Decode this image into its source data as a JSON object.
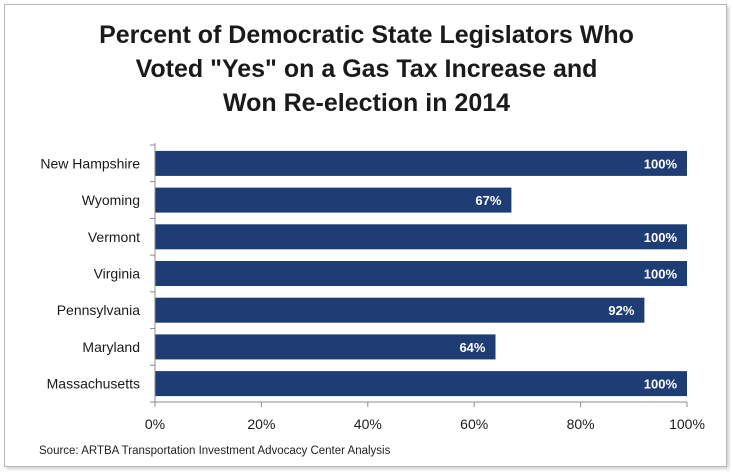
{
  "chart_data": {
    "type": "bar",
    "orientation": "horizontal",
    "title_lines": [
      "Percent of Democratic State Legislators Who",
      "Voted \"Yes\" on a Gas Tax Increase and",
      "Won Re-election in 2014"
    ],
    "categories": [
      "New Hampshire",
      "Wyoming",
      "Vermont",
      "Virginia",
      "Pennsylvania",
      "Maryland",
      "Massachusetts"
    ],
    "values": [
      100,
      67,
      100,
      100,
      92,
      64,
      100
    ],
    "value_labels": [
      "100%",
      "67%",
      "100%",
      "100%",
      "92%",
      "64%",
      "100%"
    ],
    "xlim": [
      0,
      100
    ],
    "x_ticks": [
      0,
      20,
      40,
      60,
      80,
      100
    ],
    "x_tick_labels": [
      "0%",
      "20%",
      "40%",
      "60%",
      "80%",
      "100%"
    ],
    "xlabel": "",
    "ylabel": "",
    "grid": false,
    "legend": "none",
    "bar_color": "#1f3d75",
    "value_label_color": "#ffffff"
  },
  "source": "Source: ARTBA Transportation Investment Advocacy Center Analysis"
}
